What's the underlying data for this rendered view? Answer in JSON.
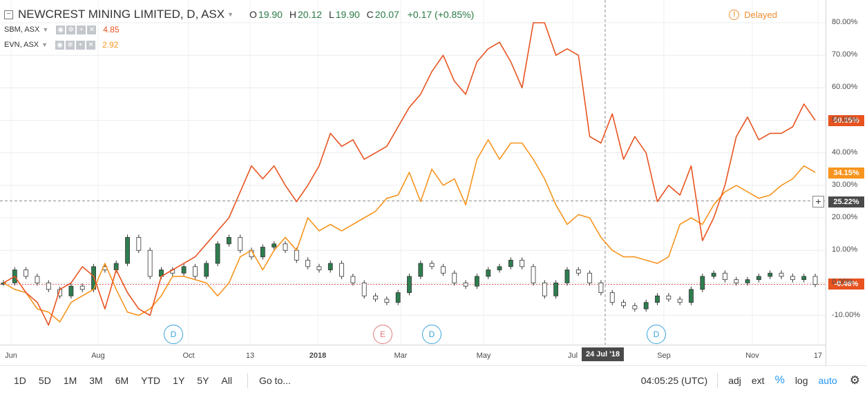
{
  "header": {
    "title": "NEWCREST MINING LIMITED, D, ASX",
    "ohlc": [
      {
        "label": "O",
        "value": "19.90"
      },
      {
        "label": "H",
        "value": "20.12"
      },
      {
        "label": "L",
        "value": "19.90"
      },
      {
        "label": "C",
        "value": "20.07"
      }
    ],
    "change": "+0.17 (+0.85%)",
    "delayed": "Delayed"
  },
  "compare": [
    {
      "symbol": "SBM, ASX",
      "value": "4.85",
      "color": "#e8531f"
    },
    {
      "symbol": "EVN, ASX",
      "value": "2.92",
      "color": "#f7941d"
    }
  ],
  "badges": {
    "sbm": "50.35%",
    "evn": "34.15%",
    "crosshair": "25.22%",
    "ncm": "-0.46%"
  },
  "crosshair_date": "24 Jul '18",
  "event_markers": [
    {
      "type": "D",
      "color": "#3aa3db"
    },
    {
      "type": "E",
      "color": "#e07a7a"
    },
    {
      "type": "D",
      "color": "#3aa3db"
    },
    {
      "type": "D",
      "color": "#3aa3db"
    }
  ],
  "toolbar": {
    "ranges": [
      "1D",
      "5D",
      "1M",
      "3M",
      "6M",
      "YTD",
      "1Y",
      "5Y",
      "All"
    ],
    "goto": "Go to...",
    "time": "04:05:25 (UTC)",
    "adj": "adj",
    "ext": "ext",
    "percent": "%",
    "log": "log",
    "auto": "auto"
  },
  "chart_data": {
    "type": "line",
    "title": "NEWCREST MINING LIMITED, D, ASX",
    "x_ticks": [
      "Jun",
      "Aug",
      "Oct",
      "13",
      "2018",
      "Mar",
      "May",
      "Jul",
      "24 Jul '18",
      "Sep",
      "Nov",
      "17"
    ],
    "y_ticks": [
      "-10.00%",
      "0.00%",
      "10.00%",
      "20.00%",
      "30.00%",
      "40.00%",
      "50.00%",
      "60.00%",
      "70.00%",
      "80.00%"
    ],
    "ylim": [
      -19,
      87
    ],
    "y_unit": "%",
    "series": [
      {
        "name": "SBM, ASX",
        "color": "#e8531f",
        "values": [
          0,
          2,
          -3,
          -6,
          -13,
          -2,
          0,
          5,
          2,
          -8,
          4,
          -3,
          -8,
          -10,
          2,
          4,
          6,
          8,
          12,
          16,
          20,
          28,
          36,
          32,
          36,
          30,
          25,
          30,
          36,
          46,
          42,
          44,
          38,
          40,
          42,
          48,
          54,
          58,
          65,
          70,
          62,
          58,
          68,
          72,
          74,
          68,
          60,
          80,
          80,
          70,
          72,
          70,
          45,
          43,
          52,
          38,
          45,
          40,
          25,
          30,
          27,
          36,
          13,
          20,
          30,
          45,
          51,
          44,
          46,
          46,
          48,
          55,
          50
        ]
      },
      {
        "name": "EVN, ASX",
        "color": "#f7941d",
        "values": [
          0,
          -2,
          -3,
          -8,
          -9,
          -12,
          -6,
          -4,
          -2,
          6,
          -2,
          -9,
          -10,
          -8,
          -4,
          2,
          2,
          1,
          0,
          -4,
          0,
          8,
          10,
          4,
          10,
          14,
          10,
          20,
          16,
          18,
          16,
          18,
          20,
          22,
          26,
          27,
          34,
          25,
          35,
          30,
          32,
          24,
          38,
          44,
          38,
          43,
          43,
          38,
          32,
          24,
          18,
          21,
          20,
          14,
          10,
          8,
          8,
          7,
          6,
          8,
          18,
          20,
          18,
          24,
          28,
          30,
          28,
          26,
          27,
          30,
          32,
          36,
          34
        ]
      },
      {
        "name": "NEWCREST MINING LIMITED, D, ASX",
        "color": "#2e7d4f",
        "values": [
          0,
          4,
          2,
          0,
          -2,
          -4,
          -1,
          -2,
          5,
          4,
          6,
          14,
          10,
          2,
          4,
          3,
          5,
          2,
          6,
          12,
          14,
          10,
          8,
          11,
          12,
          10,
          7,
          5,
          4,
          6,
          2,
          0,
          -4,
          -5,
          -6,
          -3,
          2,
          6,
          5,
          3,
          0,
          -1,
          2,
          4,
          5,
          7,
          5,
          0,
          -4,
          0,
          4,
          3,
          0,
          -3,
          -6,
          -7,
          -8,
          -6,
          -4,
          -5,
          -6,
          -2,
          2,
          3,
          1,
          0,
          1,
          2,
          3,
          2,
          1,
          2,
          -0.46
        ]
      }
    ]
  }
}
